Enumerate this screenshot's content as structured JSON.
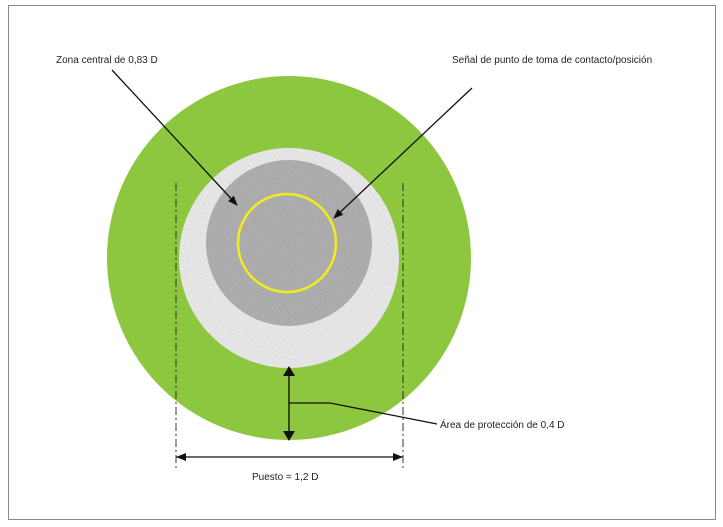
{
  "labels": {
    "central_zone": "Zona central de 0,83 D",
    "touchdown_marking": "Señal de punto de toma de contacto/posición",
    "protection_area": "Área de protección de 0,4 D",
    "stand_width": "Puesto = 1,2 D"
  },
  "colors": {
    "outer_green": "#8dc63f",
    "textured_ring": "#e9e9e9",
    "central_zone": "#a9a9a9",
    "touchdown_ring": "#f2ec1f",
    "lines": "#111111",
    "frame": "#8a8a8a"
  }
}
